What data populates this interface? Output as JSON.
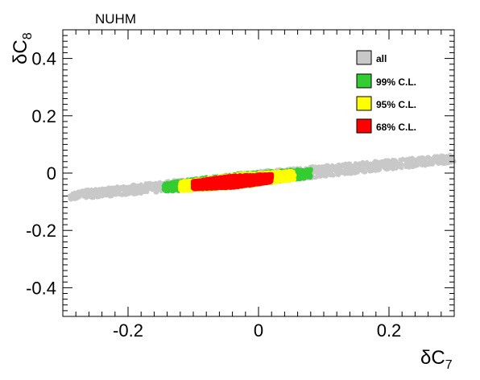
{
  "chart_data": {
    "type": "scatter",
    "model_label": "NUHM",
    "xlabel": "δC7",
    "ylabel": "δC8",
    "xlabel_main": "δC",
    "xlabel_sub": "7",
    "ylabel_main": "δC",
    "ylabel_sub": "8",
    "xlim": [
      -0.3,
      0.3
    ],
    "ylim": [
      -0.5,
      0.5
    ],
    "x_ticks": [
      -0.2,
      0,
      0.2
    ],
    "x_tick_labels": [
      "-0.2",
      "0",
      "0.2"
    ],
    "y_ticks": [
      -0.4,
      -0.2,
      0,
      0.2,
      0.4
    ],
    "y_tick_labels": [
      "-0.4",
      "-0.2",
      "0",
      "0.2",
      "0.4"
    ],
    "grid": false,
    "legend_position": "top-right",
    "series": [
      {
        "name": "all",
        "color": "#c8c8c8",
        "x_range": [
          -0.29,
          0.3
        ],
        "slope": 0.22,
        "y_at_0": -0.015,
        "thickness": 0.045
      },
      {
        "name": "99% C.L.",
        "color": "#33cc33",
        "x_range": [
          -0.145,
          0.08
        ],
        "slope": 0.22,
        "y_at_0": -0.018,
        "thickness": 0.045
      },
      {
        "name": "95% C.L.",
        "color": "#ffff00",
        "x_range": [
          -0.12,
          0.055
        ],
        "slope": 0.22,
        "y_at_0": -0.02,
        "thickness": 0.045
      },
      {
        "name": "68% C.L.",
        "color": "#ff0000",
        "x_range": [
          -0.1,
          0.02
        ],
        "slope": 0.2,
        "y_at_0": -0.022,
        "thickness": 0.04
      }
    ]
  }
}
